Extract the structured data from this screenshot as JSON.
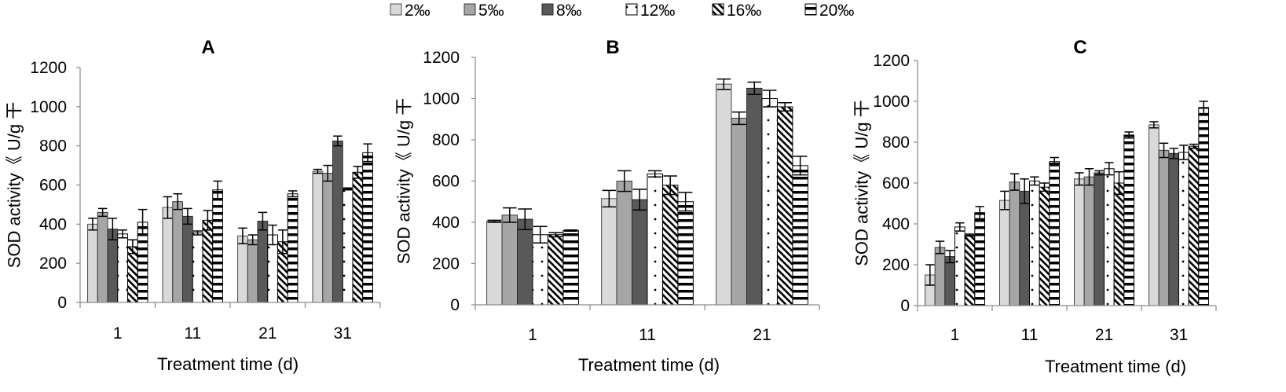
{
  "legend": [
    "2‰",
    "5‰",
    "8‰",
    "12‰",
    "16‰",
    "20‰"
  ],
  "chart_data": [
    {
      "type": "bar",
      "title": "A",
      "xlabel": "Treatment time (d)",
      "ylabel": "SOD activity《 U/g 干",
      "categories": [
        "1",
        "11",
        "21",
        "31"
      ],
      "ylim": [
        0,
        1200
      ],
      "yticks": [
        0,
        200,
        400,
        600,
        800,
        1000,
        1200
      ],
      "series": [
        {
          "name": "2‰",
          "color": "#d9d9d9",
          "values": [
            400,
            485,
            340,
            670
          ],
          "errors": [
            30,
            55,
            40,
            10
          ]
        },
        {
          "name": "5‰",
          "color": "#a6a6a6",
          "values": [
            460,
            515,
            320,
            660
          ],
          "errors": [
            20,
            40,
            25,
            40
          ]
        },
        {
          "name": "8‰",
          "color": "#595959",
          "values": [
            375,
            440,
            415,
            825
          ],
          "errors": [
            55,
            40,
            45,
            25
          ]
        },
        {
          "name": "12‰",
          "color": "#ffffff",
          "values": [
            350,
            355,
            345,
            580
          ],
          "errors": [
            20,
            10,
            50,
            5
          ]
        },
        {
          "name": "16‰",
          "color": "#ffffff",
          "values": [
            285,
            420,
            310,
            665
          ],
          "errors": [
            35,
            50,
            60,
            30
          ]
        },
        {
          "name": "20‰",
          "color": "#ffffff",
          "values": [
            410,
            575,
            555,
            765
          ],
          "errors": [
            65,
            45,
            15,
            45
          ]
        }
      ]
    },
    {
      "type": "bar",
      "title": "B",
      "xlabel": "Treatment time (d)",
      "ylabel": "SOD activity《 U/g 干",
      "categories": [
        "1",
        "11",
        "21"
      ],
      "ylim": [
        0,
        1200
      ],
      "yticks": [
        0,
        200,
        400,
        600,
        800,
        1000,
        1200
      ],
      "series": [
        {
          "name": "2‰",
          "color": "#d9d9d9",
          "values": [
            405,
            515,
            1070
          ],
          "errors": [
            5,
            40,
            25
          ]
        },
        {
          "name": "5‰",
          "color": "#a6a6a6",
          "values": [
            435,
            600,
            905
          ],
          "errors": [
            35,
            50,
            30
          ]
        },
        {
          "name": "8‰",
          "color": "#595959",
          "values": [
            415,
            510,
            1050
          ],
          "errors": [
            50,
            50,
            30
          ]
        },
        {
          "name": "12‰",
          "color": "#ffffff",
          "values": [
            340,
            635,
            1000
          ],
          "errors": [
            40,
            15,
            40
          ]
        },
        {
          "name": "16‰",
          "color": "#ffffff",
          "values": [
            340,
            580,
            960
          ],
          "errors": [
            10,
            45,
            20
          ]
        },
        {
          "name": "20‰",
          "color": "#ffffff",
          "values": [
            360,
            500,
            675
          ],
          "errors": [
            3,
            45,
            45
          ]
        }
      ]
    },
    {
      "type": "bar",
      "title": "C",
      "xlabel": "Treatment time (d)",
      "ylabel": "SOD activity《 U/g 干",
      "categories": [
        "1",
        "11",
        "21",
        "31"
      ],
      "ylim": [
        0,
        1200
      ],
      "yticks": [
        0,
        200,
        400,
        600,
        800,
        1000,
        1200
      ],
      "series": [
        {
          "name": "2‰",
          "color": "#d9d9d9",
          "values": [
            150,
            515,
            620,
            885
          ],
          "errors": [
            50,
            45,
            30,
            15
          ]
        },
        {
          "name": "5‰",
          "color": "#a6a6a6",
          "values": [
            285,
            605,
            630,
            760
          ],
          "errors": [
            30,
            40,
            40,
            35
          ]
        },
        {
          "name": "8‰",
          "color": "#595959",
          "values": [
            240,
            560,
            650,
            745
          ],
          "errors": [
            30,
            60,
            10,
            25
          ]
        },
        {
          "name": "12‰",
          "color": "#ffffff",
          "values": [
            385,
            610,
            670,
            750
          ],
          "errors": [
            20,
            20,
            30,
            35
          ]
        },
        {
          "name": "16‰",
          "color": "#ffffff",
          "values": [
            345,
            580,
            600,
            780
          ],
          "errors": [
            5,
            20,
            55,
            10
          ]
        },
        {
          "name": "20‰",
          "color": "#ffffff",
          "values": [
            455,
            705,
            835,
            970
          ],
          "errors": [
            30,
            20,
            15,
            30
          ]
        }
      ]
    }
  ]
}
